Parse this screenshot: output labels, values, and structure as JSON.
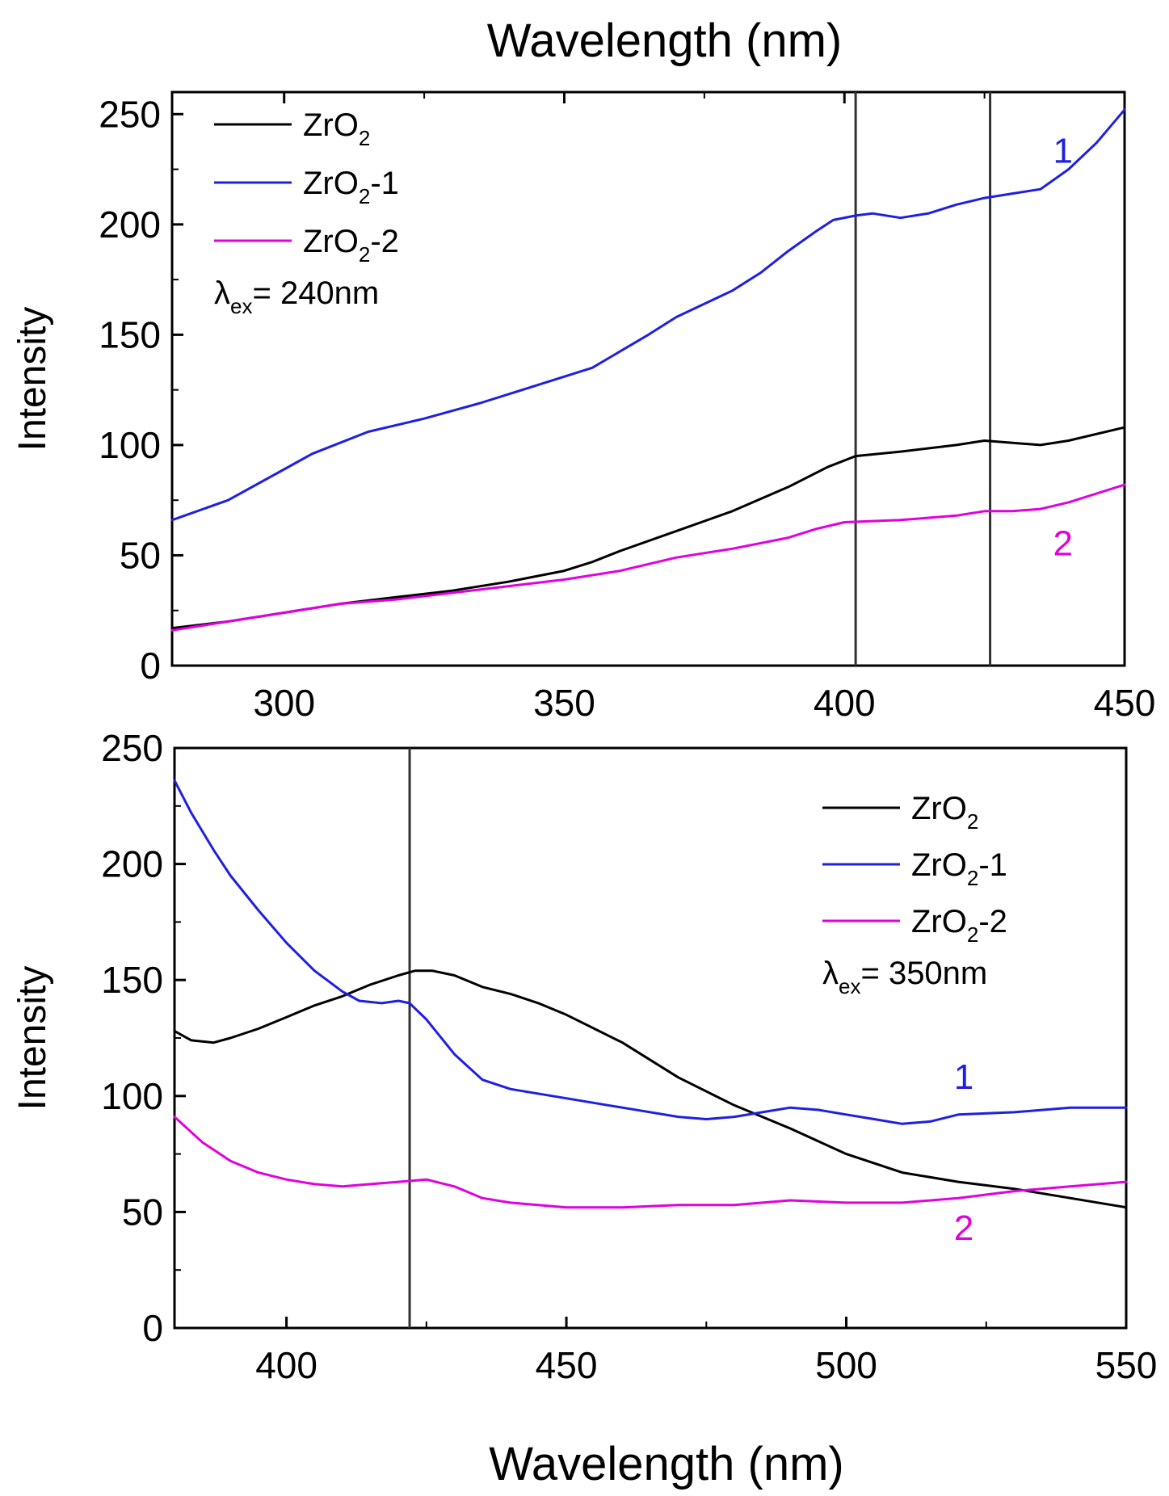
{
  "chart_data": [
    {
      "type": "line",
      "panel": "top",
      "xlabel": "Wavelength (nm)",
      "ylabel": "Intensity",
      "xlim": [
        280,
        450
      ],
      "ylim": [
        0,
        260
      ],
      "x_ticks": [
        300,
        350,
        400,
        450
      ],
      "y_ticks": [
        0,
        50,
        100,
        150,
        200,
        250
      ],
      "x_axis_position": "top",
      "vertical_lines": [
        402,
        426
      ],
      "legend_position": "top-left",
      "annotation": {
        "lambda": "λ",
        "sub": "ex",
        "rest": "= 240nm"
      },
      "series": [
        {
          "name": "ZrO",
          "name_sub": "2",
          "name_suffix": "",
          "color": "#000000",
          "x": [
            280,
            290,
            300,
            310,
            320,
            330,
            340,
            350,
            355,
            360,
            370,
            380,
            390,
            397,
            402,
            410,
            420,
            425,
            430,
            435,
            440,
            450
          ],
          "y": [
            17,
            20,
            24,
            28,
            31,
            34,
            38,
            43,
            47,
            52,
            61,
            70,
            81,
            90,
            95,
            97,
            100,
            102,
            101,
            100,
            102,
            108
          ]
        },
        {
          "name": "ZrO",
          "name_sub": "2",
          "name_suffix": "-1",
          "color": "#1f1fe0",
          "x": [
            280,
            290,
            300,
            305,
            315,
            325,
            335,
            345,
            355,
            365,
            370,
            380,
            385,
            390,
            395,
            398,
            402,
            405,
            410,
            415,
            420,
            425,
            430,
            435,
            440,
            445,
            450
          ],
          "y": [
            66,
            75,
            89,
            96,
            106,
            112,
            119,
            127,
            135,
            150,
            158,
            170,
            178,
            188,
            197,
            202,
            204,
            205,
            203,
            205,
            209,
            212,
            214,
            216,
            225,
            237,
            252
          ]
        },
        {
          "name": "ZrO",
          "name_sub": "2",
          "name_suffix": "-2",
          "color": "#e000e0",
          "x": [
            280,
            290,
            300,
            310,
            320,
            330,
            340,
            350,
            360,
            370,
            380,
            390,
            395,
            400,
            410,
            420,
            425,
            430,
            435,
            440,
            445,
            450
          ],
          "y": [
            16,
            20,
            24,
            28,
            30,
            33,
            36,
            39,
            43,
            49,
            53,
            58,
            62,
            65,
            66,
            68,
            70,
            70,
            71,
            74,
            78,
            82
          ]
        }
      ],
      "curve_labels": [
        {
          "text": "1",
          "color": "#1f1fe0",
          "x": 439,
          "y": 228
        },
        {
          "text": "2",
          "color": "#e000e0",
          "x": 439,
          "y": 50
        }
      ]
    },
    {
      "type": "line",
      "panel": "bottom",
      "xlabel": "Wavelength (nm)",
      "ylabel": "Intensity",
      "xlim": [
        380,
        550
      ],
      "ylim": [
        0,
        250
      ],
      "x_ticks": [
        400,
        450,
        500,
        550
      ],
      "y_ticks": [
        0,
        50,
        100,
        150,
        200,
        250
      ],
      "x_axis_position": "bottom",
      "vertical_lines": [
        422
      ],
      "legend_position": "top-right",
      "annotation": {
        "lambda": "λ",
        "sub": "ex",
        "rest": "= 350nm"
      },
      "series": [
        {
          "name": "ZrO",
          "name_sub": "2",
          "name_suffix": "",
          "color": "#000000",
          "x": [
            380,
            383,
            387,
            390,
            395,
            400,
            405,
            410,
            415,
            420,
            423,
            426,
            430,
            435,
            440,
            445,
            450,
            460,
            470,
            480,
            490,
            500,
            510,
            520,
            530,
            540,
            550
          ],
          "y": [
            128,
            124,
            123,
            125,
            129,
            134,
            139,
            143,
            148,
            152,
            154,
            154,
            152,
            147,
            144,
            140,
            135,
            123,
            108,
            96,
            86,
            75,
            67,
            63,
            60,
            56,
            52
          ]
        },
        {
          "name": "ZrO",
          "name_sub": "2",
          "name_suffix": "-1",
          "color": "#1f1fe0",
          "x": [
            380,
            383,
            387,
            390,
            395,
            400,
            405,
            410,
            413,
            417,
            420,
            422,
            425,
            430,
            435,
            440,
            450,
            460,
            470,
            475,
            480,
            485,
            490,
            495,
            500,
            505,
            510,
            515,
            520,
            530,
            540,
            550
          ],
          "y": [
            236,
            222,
            206,
            195,
            180,
            166,
            154,
            145,
            141,
            140,
            141,
            140,
            133,
            118,
            107,
            103,
            99,
            95,
            91,
            90,
            91,
            93,
            95,
            94,
            92,
            90,
            88,
            89,
            92,
            93,
            95,
            95
          ]
        },
        {
          "name": "ZrO",
          "name_sub": "2",
          "name_suffix": "-2",
          "color": "#e000e0",
          "x": [
            380,
            385,
            390,
            395,
            400,
            405,
            410,
            415,
            420,
            425,
            430,
            435,
            440,
            450,
            460,
            470,
            480,
            490,
            500,
            510,
            520,
            530,
            540,
            550
          ],
          "y": [
            91,
            80,
            72,
            67,
            64,
            62,
            61,
            62,
            63,
            64,
            61,
            56,
            54,
            52,
            52,
            53,
            53,
            55,
            54,
            54,
            56,
            59,
            61,
            63
          ]
        }
      ],
      "curve_labels": [
        {
          "text": "1",
          "color": "#1f1fe0",
          "x": 521,
          "y": 103
        },
        {
          "text": "2",
          "color": "#e000e0",
          "x": 521,
          "y": 38
        }
      ]
    }
  ]
}
